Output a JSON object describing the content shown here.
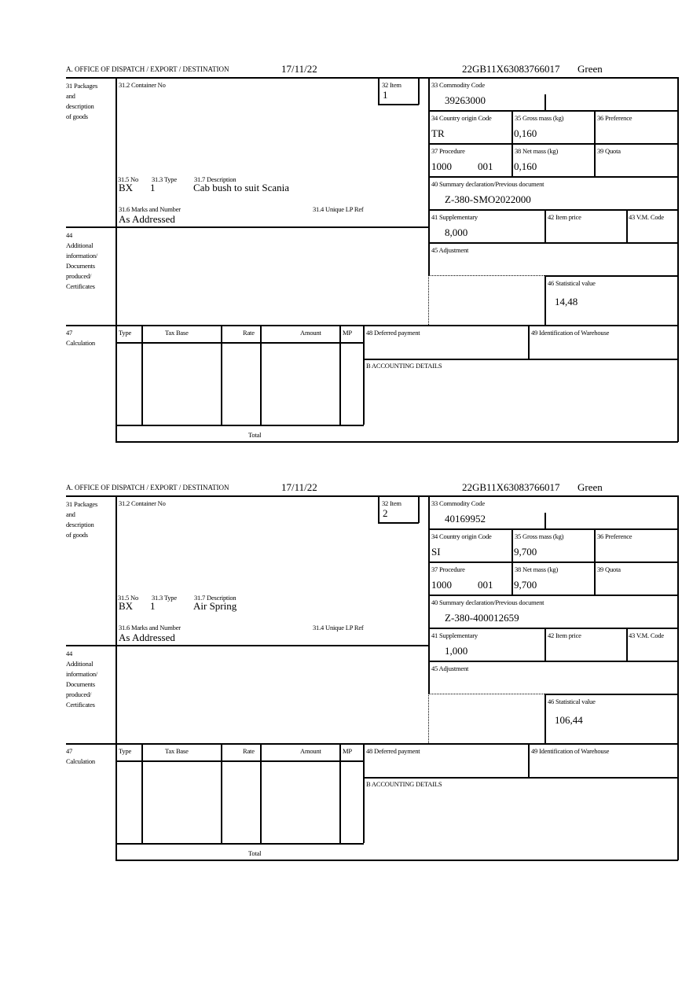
{
  "labels": {
    "office": "A.  OFFICE OF DISPATCH / EXPORT / DESTINATION",
    "box31": [
      "31 Packages",
      "and",
      "description",
      "of goods"
    ],
    "box31_2": "31.2 Container No",
    "box32": "32 Item",
    "box31_5": "31.5 No",
    "box31_3": "31.3 Type",
    "box31_7": "31.7 Description",
    "box31_6": "31.6 Marks and Number",
    "box31_4": "31.4 Unique LP Ref",
    "box44": [
      "44",
      "Additional",
      "information/",
      "Documents",
      "produced/",
      "Certificates"
    ],
    "box33": "33 Commodity Code",
    "box34": "34 Country origin Code",
    "box35": "35 Gross mass (kg)",
    "box36": "36 Preference",
    "box37": "37 Procedure",
    "box38": "38 Net mass (kg)",
    "box39": "39 Quota",
    "box40": "40 Summary declaration/Previous document",
    "box41": "41 Supplementary",
    "box42": "42 Item price",
    "box43": "43 V.M. Code",
    "box45": "45 Adjustment",
    "box46": "46 Statistical value",
    "box47": [
      "47",
      "Calculation"
    ],
    "calc_headers": [
      "Type",
      "Tax Base",
      "Rate",
      "Amount",
      "MP"
    ],
    "total": "Total",
    "box48": "48 Deferred payment",
    "box49": "49 Identification of Warehouse",
    "boxB": "B ACCOUNTING DETAILS"
  },
  "items": [
    {
      "date": "17/11/22",
      "reference": "22GB11X63083766017",
      "route": "Green",
      "item_no": "1",
      "package_kind": "BX",
      "package_count": "1",
      "description": "Cab bush to suit Scania",
      "marks": "As Addressed",
      "commodity_code": "39263000",
      "country_origin": "TR",
      "gross_mass": "0,160",
      "procedure": "1000",
      "procedure_extra": "001",
      "net_mass": "0,160",
      "previous_document": "Z-380-SMO2022000",
      "supplementary": "8,000",
      "statistical_value": "14,48"
    },
    {
      "date": "17/11/22",
      "reference": "22GB11X63083766017",
      "route": "Green",
      "item_no": "2",
      "package_kind": "BX",
      "package_count": "1",
      "description": "Air Spring",
      "marks": "As Addressed",
      "commodity_code": "40169952",
      "country_origin": "SI",
      "gross_mass": "9,700",
      "procedure": "1000",
      "procedure_extra": "001",
      "net_mass": "9,700",
      "previous_document": "Z-380-400012659",
      "supplementary": "1,000",
      "statistical_value": "106,44"
    }
  ]
}
